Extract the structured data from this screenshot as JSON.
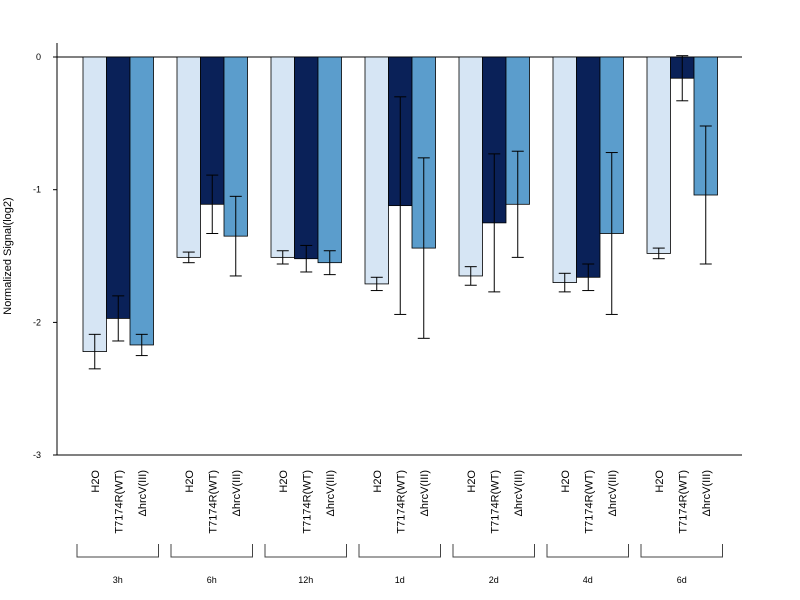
{
  "chart_data": {
    "type": "bar",
    "title": "",
    "xlabel": "",
    "ylabel": "Normalized Signal(log2)",
    "ylim": [
      -3,
      0.1
    ],
    "yticks": [
      0,
      -1,
      -2,
      -3
    ],
    "ytick_labels": [
      "0",
      "-1",
      "-2",
      "-3"
    ],
    "grid": false,
    "groups": [
      "3h",
      "6h",
      "12h",
      "1d",
      "2d",
      "4d",
      "6d"
    ],
    "series": [
      {
        "name": "H2O",
        "color": "#d6e5f4",
        "values": [
          -2.22,
          -1.51,
          -1.51,
          -1.71,
          -1.65,
          -1.7,
          -1.48
        ],
        "error": [
          0.13,
          0.04,
          0.05,
          0.05,
          0.07,
          0.07,
          0.04
        ]
      },
      {
        "name": "T7174R(WT)",
        "color": "#0a2158",
        "values": [
          -1.97,
          -1.11,
          -1.52,
          -1.12,
          -1.25,
          -1.66,
          -0.16
        ],
        "error": [
          0.17,
          0.22,
          0.1,
          0.82,
          0.52,
          0.1,
          0.17
        ]
      },
      {
        "name": "ΔhrcV(III)",
        "color": "#5b9dcc",
        "values": [
          -2.17,
          -1.35,
          -1.55,
          -1.44,
          -1.11,
          -1.33,
          -1.04
        ],
        "error": [
          0.08,
          0.3,
          0.09,
          0.68,
          0.4,
          0.61,
          0.52
        ]
      }
    ]
  }
}
